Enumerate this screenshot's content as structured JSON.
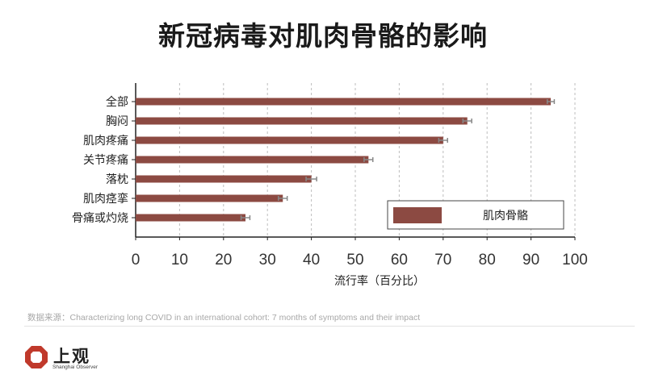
{
  "chart_data": {
    "type": "bar",
    "orientation": "horizontal",
    "title": "新冠病毒对肌肉骨骼的影响",
    "categories": [
      "全部",
      "胸闷",
      "肌肉疼痛",
      "关节疼痛",
      "落枕",
      "肌肉痉挛",
      "骨痛或灼烧"
    ],
    "series": [
      {
        "name": "肌肉骨骼",
        "values": [
          94.5,
          75.5,
          70,
          53,
          40,
          33.5,
          25
        ],
        "error": [
          0.8,
          1.0,
          1.0,
          1.0,
          1.2,
          1.0,
          1.0
        ]
      }
    ],
    "xlabel": "流行率（百分比）",
    "ylabel": "",
    "xlim": [
      0,
      100
    ],
    "xticks": [
      "0",
      "10",
      "20",
      "30",
      "40",
      "50",
      "60",
      "70",
      "80",
      "90",
      "100"
    ],
    "grid": "dashed vertical",
    "legend_position": "bottom-right",
    "colors": {
      "bar": "#8c4a42",
      "error_bar": "#888888",
      "grid": "#bdbdbd"
    }
  },
  "source": "数据来源：Characterizing long COVID in an international cohort: 7 months of symptoms and their impact",
  "logo": {
    "name_cn": "上观",
    "name_en": "Shanghai Observer",
    "color": "#c0392b"
  }
}
